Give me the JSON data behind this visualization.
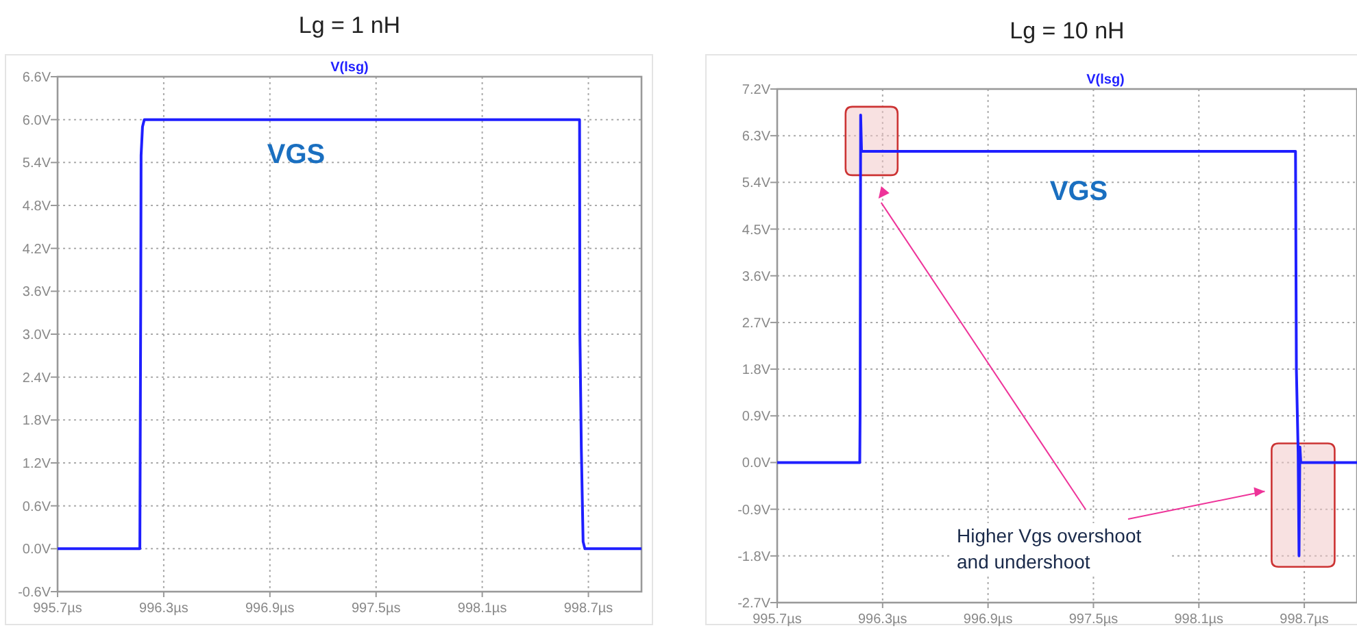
{
  "chart_data": [
    {
      "type": "line",
      "title": "Lg = 1 nH",
      "legend": "top",
      "grid": true,
      "line_style": "solid",
      "marker": "none",
      "xlim": [
        995.7,
        999.0
      ],
      "ylim": [
        -0.6,
        6.6
      ],
      "xticks": [
        {
          "value": 995.7,
          "label": "995.7µs"
        },
        {
          "value": 996.3,
          "label": "996.3µs"
        },
        {
          "value": 996.9,
          "label": "996.9µs"
        },
        {
          "value": 997.5,
          "label": "997.5µs"
        },
        {
          "value": 998.1,
          "label": "998.1µs"
        },
        {
          "value": 998.7,
          "label": "998.7µs"
        }
      ],
      "yticks": [
        {
          "value": -0.6,
          "label": "-0.6V"
        },
        {
          "value": 0,
          "label": "0.0V"
        },
        {
          "value": 0.6,
          "label": "0.6V"
        },
        {
          "value": 1.2,
          "label": "1.2V"
        },
        {
          "value": 1.8,
          "label": "1.8V"
        },
        {
          "value": 2.4,
          "label": "2.4V"
        },
        {
          "value": 3.0,
          "label": "3.0V"
        },
        {
          "value": 3.6,
          "label": "3.6V"
        },
        {
          "value": 4.2,
          "label": "4.2V"
        },
        {
          "value": 4.8,
          "label": "4.8V"
        },
        {
          "value": 5.4,
          "label": "5.4V"
        },
        {
          "value": 6.0,
          "label": "6.0V"
        },
        {
          "value": 6.6,
          "label": "6.6V"
        }
      ],
      "series": [
        {
          "name": "V(lsg)",
          "color": "#1f1fff",
          "x": [
            995.7,
            996.165,
            996.17,
            996.172,
            996.18,
            996.19,
            998.65,
            998.652,
            998.66,
            998.67,
            998.68,
            999.0
          ],
          "values": [
            0,
            0,
            3.5,
            5.5,
            5.9,
            6.0,
            6.0,
            3.0,
            1.4,
            0.1,
            0,
            0
          ]
        }
      ],
      "annotations": [
        "VGS"
      ]
    },
    {
      "type": "line",
      "title": "Lg = 10 nH",
      "legend": "top",
      "grid": true,
      "line_style": "solid",
      "marker": "none",
      "xlim": [
        995.7,
        999.0
      ],
      "ylim": [
        -2.7,
        7.2
      ],
      "xticks": [
        {
          "value": 995.7,
          "label": "995.7µs"
        },
        {
          "value": 996.3,
          "label": "996.3µs"
        },
        {
          "value": 996.9,
          "label": "996.9µs"
        },
        {
          "value": 997.5,
          "label": "997.5µs"
        },
        {
          "value": 998.1,
          "label": "998.1µs"
        },
        {
          "value": 998.7,
          "label": "998.7µs"
        }
      ],
      "yticks": [
        {
          "value": -2.7,
          "label": "-2.7V"
        },
        {
          "value": -1.8,
          "label": "-1.8V"
        },
        {
          "value": -0.9,
          "label": "-0.9V"
        },
        {
          "value": 0,
          "label": "0.0V"
        },
        {
          "value": 0.9,
          "label": "0.9V"
        },
        {
          "value": 1.8,
          "label": "1.8V"
        },
        {
          "value": 2.7,
          "label": "2.7V"
        },
        {
          "value": 3.6,
          "label": "3.6V"
        },
        {
          "value": 4.5,
          "label": "4.5V"
        },
        {
          "value": 5.4,
          "label": "5.4V"
        },
        {
          "value": 6.3,
          "label": "6.3V"
        },
        {
          "value": 7.2,
          "label": "7.2V"
        }
      ],
      "series": [
        {
          "name": "V(lsg)",
          "color": "#1f1fff",
          "x": [
            995.7,
            996.17,
            996.172,
            996.175,
            996.18,
            998.65,
            998.655,
            998.665,
            998.67,
            998.675,
            998.68,
            999.0
          ],
          "values": [
            0,
            0,
            1.0,
            6.7,
            6.0,
            6.0,
            1.8,
            0.2,
            -1.8,
            0.3,
            0,
            0
          ]
        }
      ],
      "annotations": [
        "VGS",
        "Higher Vgs overshoot and undershoot"
      ]
    }
  ]
}
